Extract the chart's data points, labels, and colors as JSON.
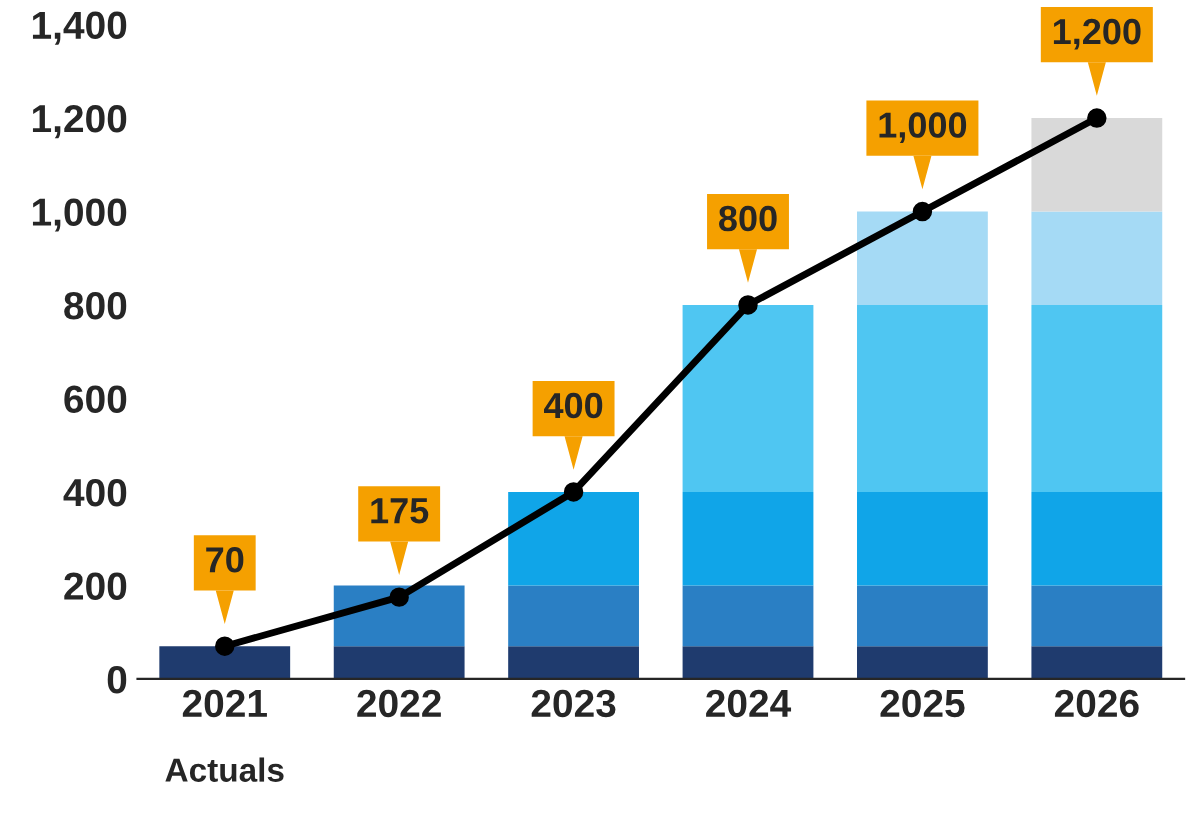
{
  "chart_data": {
    "type": "bar",
    "stacked": true,
    "categories": [
      "2021",
      "2022",
      "2023",
      "2024",
      "2025",
      "2026"
    ],
    "series": [
      {
        "color": "#1f3b6e",
        "values": [
          70,
          70,
          70,
          70,
          70,
          70
        ]
      },
      {
        "color": "#2a7fc4",
        "values": [
          null,
          130,
          130,
          130,
          130,
          130
        ]
      },
      {
        "color": "#10a5e8",
        "values": [
          null,
          null,
          200,
          200,
          200,
          200
        ]
      },
      {
        "color": "#4fc6f2",
        "values": [
          null,
          null,
          null,
          400,
          400,
          400
        ]
      },
      {
        "color": "#a5daf5",
        "values": [
          null,
          null,
          null,
          null,
          200,
          200
        ]
      },
      {
        "color": "#d9d9d9",
        "values": [
          null,
          null,
          null,
          null,
          null,
          200
        ]
      },
      {
        "type": "line",
        "color": "#000000",
        "marker": "circle",
        "values": [
          70,
          175,
          400,
          800,
          1000,
          1200
        ],
        "value_labels": [
          "70",
          "175",
          "400",
          "800",
          "1,000",
          "1,200"
        ]
      }
    ],
    "ylim": [
      0,
      1400
    ],
    "yticks": [
      {
        "value": 0,
        "label": "0"
      },
      {
        "value": 200,
        "label": "200"
      },
      {
        "value": 400,
        "label": "400"
      },
      {
        "value": 600,
        "label": "600"
      },
      {
        "value": 800,
        "label": "800"
      },
      {
        "value": 1000,
        "label": "1,000"
      },
      {
        "value": 1200,
        "label": "1,200"
      },
      {
        "value": 1400,
        "label": "1,400"
      }
    ],
    "grid": false,
    "legend": false,
    "annotations": [
      "Actuals"
    ]
  }
}
